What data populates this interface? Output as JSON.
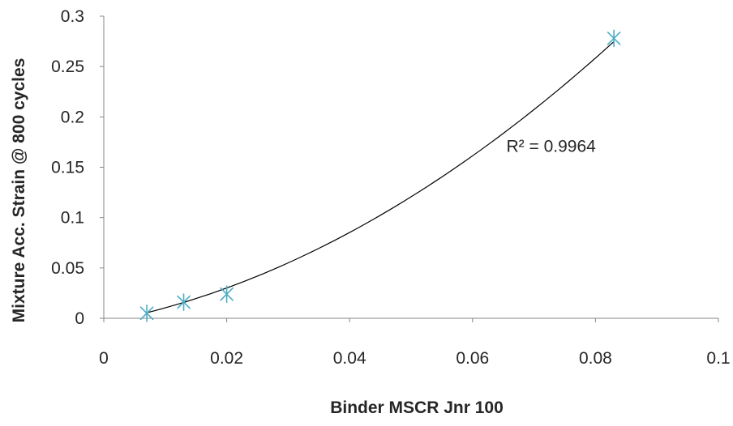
{
  "chart_data": {
    "type": "scatter",
    "title": "",
    "xlabel": "Binder MSCR Jnr 100",
    "ylabel": "Mixture Acc. Strain @ 800 cycles",
    "xlim": [
      0,
      0.1
    ],
    "ylim": [
      0,
      0.3
    ],
    "x_ticks": [
      "0",
      "0.02",
      "0.04",
      "0.06",
      "0.08",
      "0.1"
    ],
    "y_ticks": [
      "0",
      "0.05",
      "0.1",
      "0.15",
      "0.2",
      "0.25",
      "0.3"
    ],
    "grid": false,
    "legend": "none",
    "series": [
      {
        "marker": "asterisk",
        "color": "#4bacc6",
        "points": [
          {
            "x": 0.007,
            "y": 0.005
          },
          {
            "x": 0.013,
            "y": 0.016
          },
          {
            "x": 0.02,
            "y": 0.024
          },
          {
            "x": 0.083,
            "y": 0.278
          }
        ]
      }
    ],
    "trendline": {
      "type": "polynomial-2",
      "color": "#000000",
      "x_range": [
        0.007,
        0.083
      ],
      "points": [
        {
          "x": 0.007,
          "y": 0.005
        },
        {
          "x": 0.02,
          "y": 0.031
        },
        {
          "x": 0.04,
          "y": 0.085
        },
        {
          "x": 0.06,
          "y": 0.161
        },
        {
          "x": 0.083,
          "y": 0.275
        }
      ]
    },
    "annotation": {
      "text": "R² = 0.9964",
      "x": 0.0655,
      "y": 0.171
    }
  }
}
